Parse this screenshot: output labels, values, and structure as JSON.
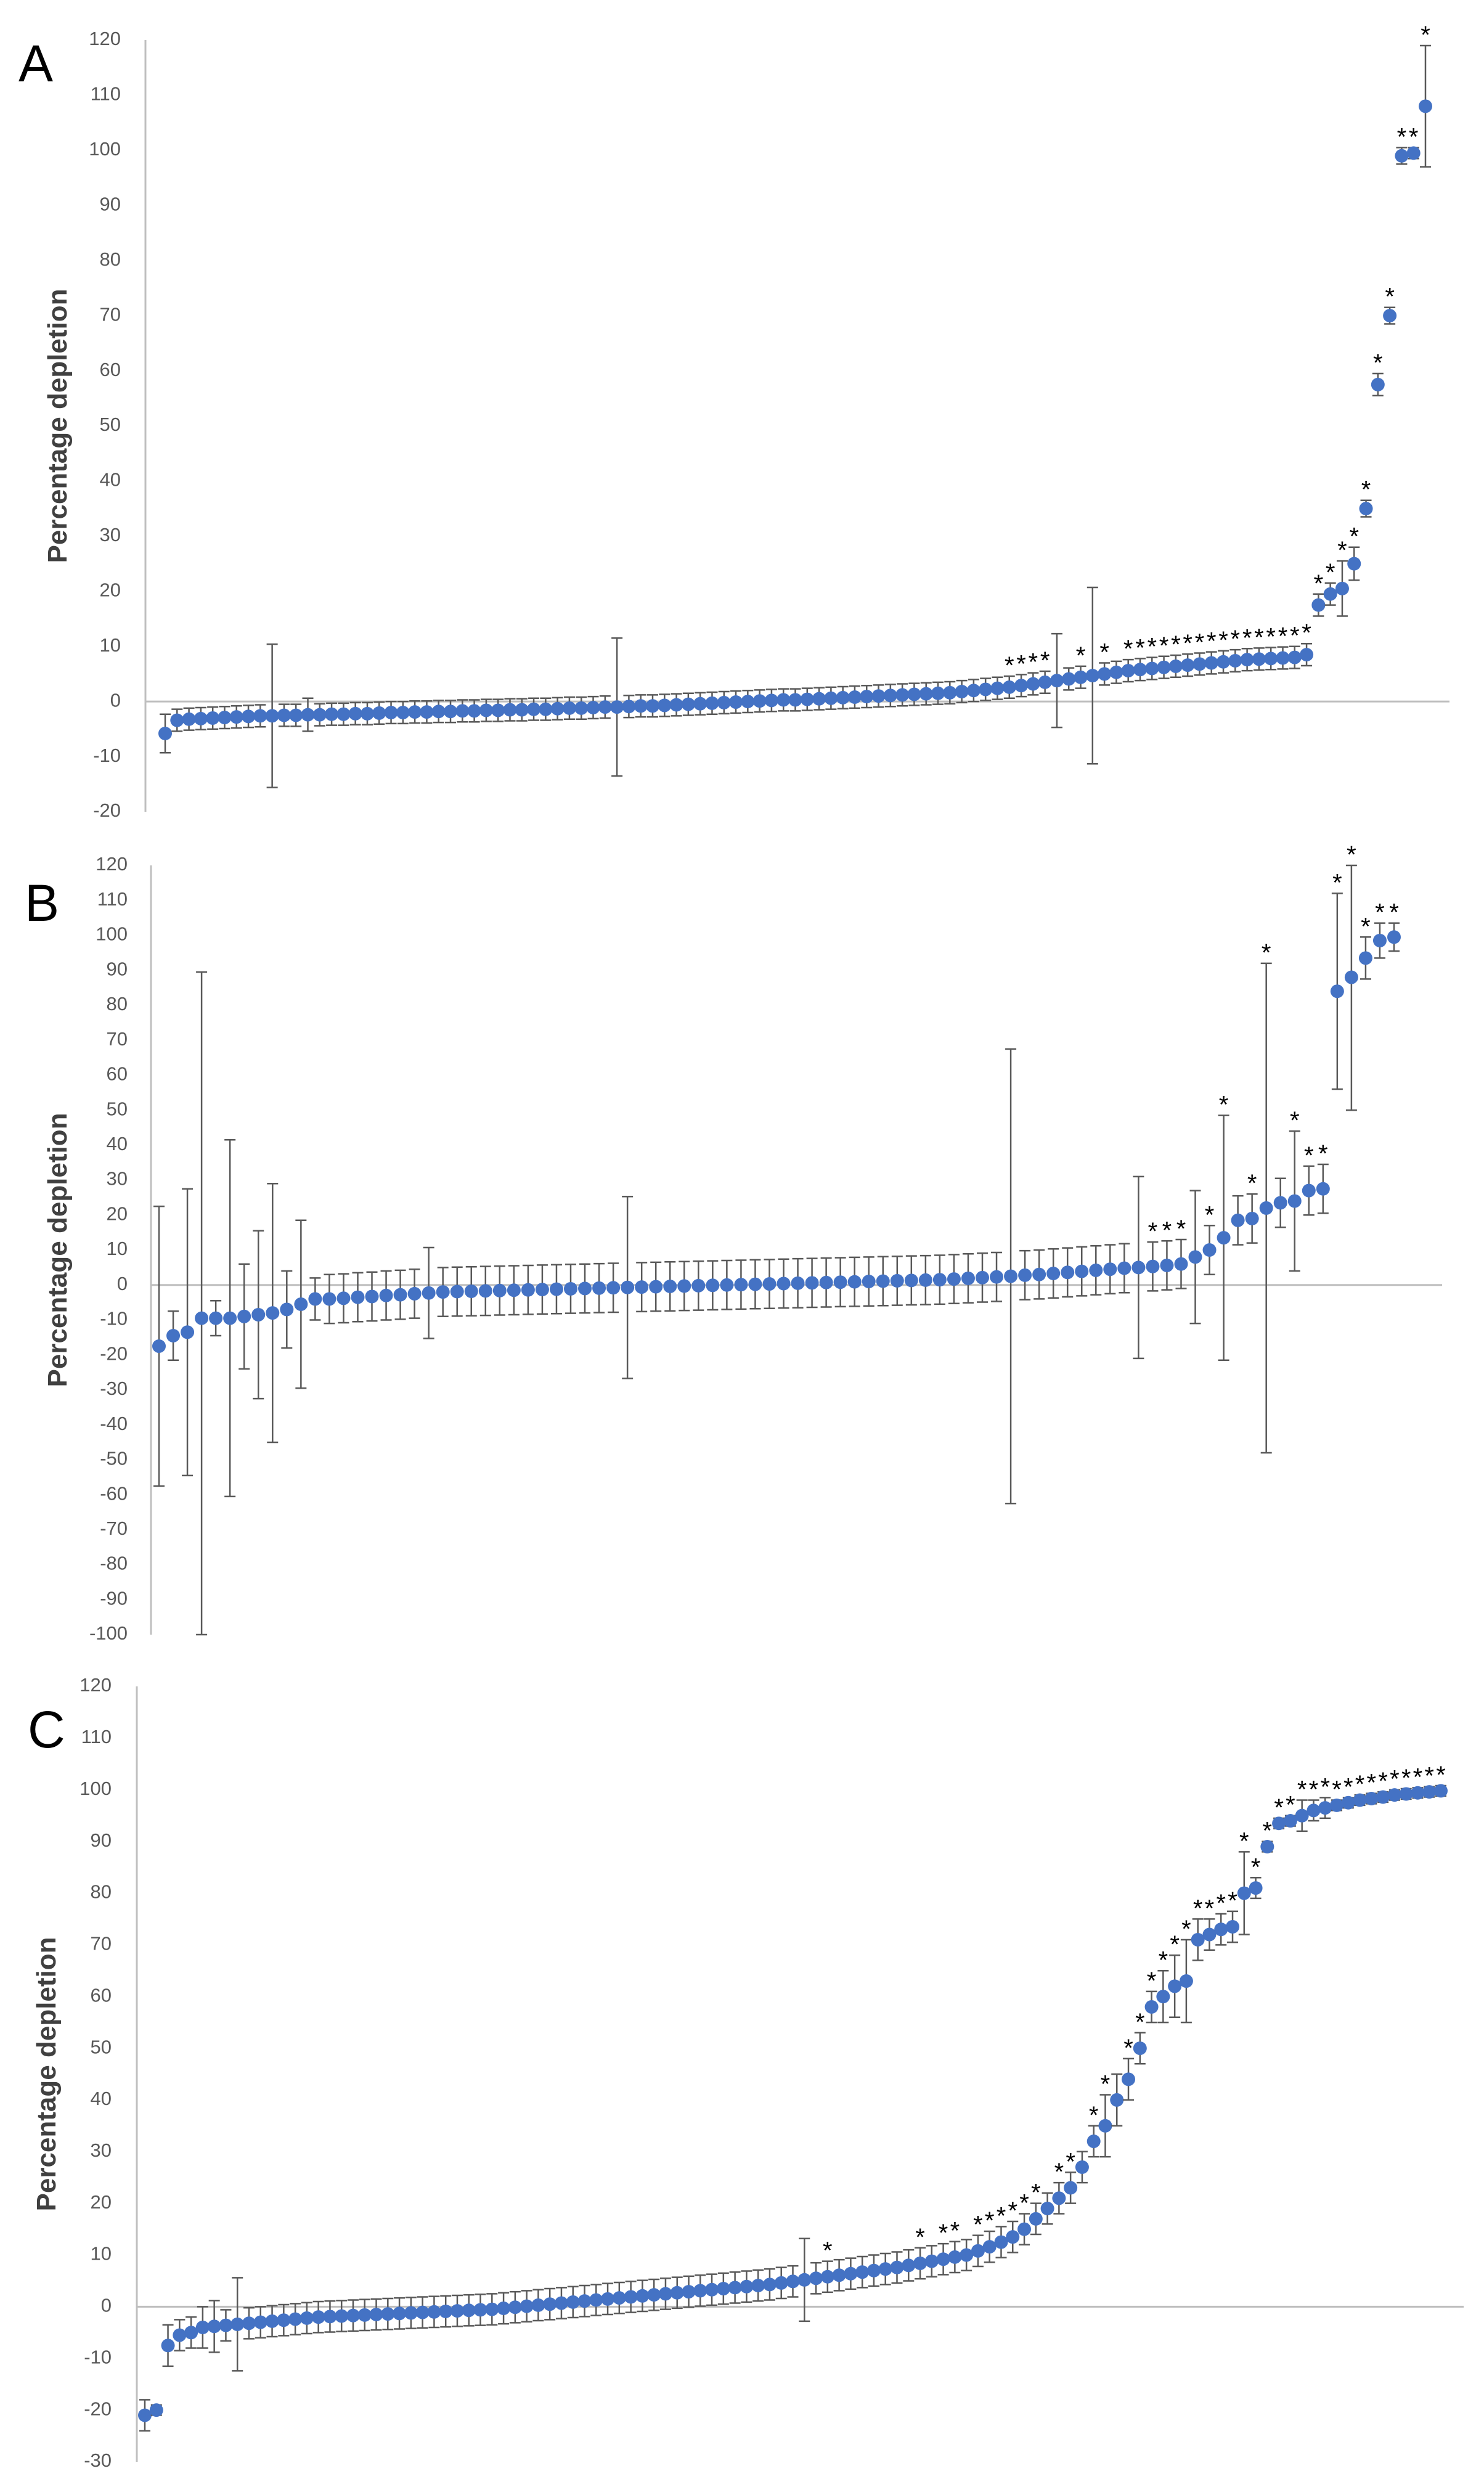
{
  "chart_data": [
    {
      "type": "scatter",
      "panel": "A",
      "title": "",
      "xlabel": "",
      "ylabel": "Percentage depletion",
      "ylim": [
        -20,
        120
      ],
      "y_ticks": [
        -20,
        -10,
        0,
        10,
        20,
        30,
        40,
        50,
        60,
        70,
        80,
        90,
        100,
        110,
        120
      ],
      "series": [
        {
          "name": "Percentage depletion",
          "color": "#4472C4",
          "values": [
            -5.8,
            -3.4,
            -3.2,
            -3.1,
            -3.0,
            -2.9,
            -2.8,
            -2.7,
            -2.6,
            -2.6,
            -2.5,
            -2.5,
            -2.4,
            -2.4,
            -2.3,
            -2.3,
            -2.2,
            -2.2,
            -2.1,
            -2.0,
            -2.0,
            -1.9,
            -1.9,
            -1.8,
            -1.8,
            -1.7,
            -1.7,
            -1.6,
            -1.6,
            -1.5,
            -1.5,
            -1.4,
            -1.4,
            -1.3,
            -1.2,
            -1.2,
            -1.1,
            -1.0,
            -1.0,
            -0.9,
            -0.8,
            -0.8,
            -0.7,
            -0.6,
            -0.5,
            -0.4,
            -0.3,
            -0.2,
            -0.1,
            0.0,
            0.1,
            0.2,
            0.3,
            0.3,
            0.4,
            0.5,
            0.6,
            0.7,
            0.8,
            0.9,
            1.0,
            1.1,
            1.2,
            1.3,
            1.4,
            1.5,
            1.6,
            1.8,
            2.0,
            2.2,
            2.4,
            2.6,
            2.9,
            3.2,
            3.5,
            3.8,
            4.1,
            4.4,
            4.7,
            5.0,
            5.3,
            5.6,
            5.8,
            6.0,
            6.2,
            6.4,
            6.6,
            6.8,
            7.0,
            7.2,
            7.4,
            7.6,
            7.7,
            7.8,
            7.9,
            8.0,
            8.5,
            17.5,
            19.5,
            20.5,
            25,
            35,
            57.5,
            70,
            99,
            99.5,
            108
          ],
          "errors": [
            3.5,
            2,
            2,
            2,
            2,
            2,
            2,
            2,
            2,
            13,
            2,
            2,
            3,
            2,
            2,
            2,
            2,
            2,
            2,
            2,
            2,
            2,
            2,
            2,
            2,
            2,
            2,
            2,
            2,
            2,
            2,
            2,
            2,
            2,
            2,
            2,
            2,
            2,
            12.5,
            2,
            2,
            2,
            2,
            2,
            2,
            2,
            2,
            2,
            2,
            2,
            2,
            2,
            2,
            2,
            2,
            2,
            2,
            2,
            2,
            2,
            2,
            2,
            2,
            2,
            2,
            2,
            2,
            2,
            2,
            2,
            2,
            2,
            2,
            2,
            2,
            8.5,
            2,
            2,
            16,
            2,
            2,
            2,
            2,
            2,
            2,
            2,
            2,
            2,
            2,
            2,
            2,
            2,
            2,
            2,
            2,
            2,
            2,
            2,
            2,
            5,
            3,
            1.5,
            2,
            1.5,
            1.5,
            1,
            11
          ],
          "significant": [
            false,
            false,
            false,
            false,
            false,
            false,
            false,
            false,
            false,
            false,
            false,
            false,
            false,
            false,
            false,
            false,
            false,
            false,
            false,
            false,
            false,
            false,
            false,
            false,
            false,
            false,
            false,
            false,
            false,
            false,
            false,
            false,
            false,
            false,
            false,
            false,
            false,
            false,
            false,
            false,
            false,
            false,
            false,
            false,
            false,
            false,
            false,
            false,
            false,
            false,
            false,
            false,
            false,
            false,
            false,
            false,
            false,
            false,
            false,
            false,
            false,
            false,
            false,
            false,
            false,
            false,
            false,
            false,
            false,
            false,
            false,
            true,
            true,
            true,
            true,
            false,
            false,
            true,
            false,
            true,
            false,
            true,
            true,
            true,
            true,
            true,
            true,
            true,
            true,
            true,
            true,
            true,
            true,
            true,
            true,
            true,
            true,
            true,
            true,
            true,
            true,
            true,
            true,
            true,
            true,
            true,
            true,
            true
          ]
        }
      ],
      "significance_marker": "*"
    },
    {
      "type": "scatter",
      "panel": "B",
      "title": "",
      "xlabel": "",
      "ylabel": "Percentage depletion",
      "ylim": [
        -100,
        120
      ],
      "y_ticks": [
        -100,
        -90,
        -80,
        -70,
        -60,
        -50,
        -40,
        -30,
        -20,
        -10,
        0,
        10,
        20,
        30,
        40,
        50,
        60,
        70,
        80,
        90,
        100,
        110,
        120
      ],
      "series": [
        {
          "name": "Percentage depletion",
          "color": "#4472C4",
          "values": [
            -17.5,
            -14.5,
            -13.5,
            -9.5,
            -9.5,
            -9.5,
            -9.0,
            -8.5,
            -8.0,
            -7.0,
            -5.5,
            -4.0,
            -4.0,
            -3.8,
            -3.5,
            -3.3,
            -3.0,
            -2.8,
            -2.5,
            -2.3,
            -2.0,
            -1.9,
            -1.8,
            -1.7,
            -1.6,
            -1.5,
            -1.4,
            -1.3,
            -1.2,
            -1.1,
            -1.0,
            -0.9,
            -0.8,
            -0.7,
            -0.6,
            -0.5,
            -0.4,
            -0.3,
            -0.2,
            -0.1,
            0.0,
            0.1,
            0.2,
            0.3,
            0.4,
            0.5,
            0.6,
            0.7,
            0.8,
            0.9,
            1.0,
            1.1,
            1.2,
            1.3,
            1.4,
            1.5,
            1.7,
            1.9,
            2.1,
            2.3,
            2.5,
            2.8,
            3.0,
            3.3,
            3.6,
            3.9,
            4.2,
            4.5,
            4.8,
            5.0,
            5.3,
            5.6,
            6.0,
            8.0,
            10.0,
            13.5,
            18.5,
            19.0,
            22.0,
            23.5,
            24.0,
            27.0,
            27.5,
            84,
            88,
            93.5,
            98.5,
            99.5
          ],
          "errors": [
            40,
            7,
            41,
            99,
            5,
            51,
            15,
            24,
            37,
            11,
            24,
            6,
            7,
            7,
            7,
            7,
            7,
            7,
            7,
            13,
            7,
            7,
            7,
            7,
            7,
            7,
            7,
            7,
            7,
            7,
            7,
            7,
            7,
            26,
            7,
            7,
            7,
            7,
            7,
            7,
            7,
            7,
            7,
            7,
            7,
            7,
            7,
            7,
            7,
            7,
            7,
            7,
            7,
            7,
            7,
            7,
            7,
            7,
            7,
            7,
            65,
            7,
            7,
            7,
            7,
            7,
            7,
            7,
            7,
            26,
            7,
            7,
            7,
            19,
            7,
            35,
            7,
            7,
            70,
            7,
            20,
            7,
            7,
            28,
            38,
            6,
            5,
            4
          ],
          "significant": [
            false,
            false,
            false,
            false,
            false,
            false,
            false,
            false,
            false,
            false,
            false,
            false,
            false,
            false,
            false,
            false,
            false,
            false,
            false,
            false,
            false,
            false,
            false,
            false,
            false,
            false,
            false,
            false,
            false,
            false,
            false,
            false,
            false,
            false,
            false,
            false,
            false,
            false,
            false,
            false,
            false,
            false,
            false,
            false,
            false,
            false,
            false,
            false,
            false,
            false,
            false,
            false,
            false,
            false,
            false,
            false,
            false,
            false,
            false,
            false,
            false,
            false,
            false,
            false,
            false,
            false,
            false,
            false,
            false,
            false,
            true,
            true,
            true,
            false,
            true,
            true,
            false,
            true,
            true,
            false,
            true,
            true,
            true,
            true,
            true,
            true,
            true,
            true
          ]
        }
      ],
      "significance_marker": "*"
    },
    {
      "type": "scatter",
      "panel": "C",
      "title": "",
      "xlabel": "",
      "ylabel": "Percentage depletion",
      "ylim": [
        -30,
        120
      ],
      "y_ticks": [
        -30,
        -20,
        -10,
        0,
        10,
        20,
        30,
        40,
        50,
        60,
        70,
        80,
        90,
        100,
        110,
        120
      ],
      "series": [
        {
          "name": "Percentage depletion",
          "color": "#4472C4",
          "values": [
            -21,
            -20,
            -7.5,
            -5.5,
            -5,
            -4,
            -3.8,
            -3.6,
            -3.4,
            -3.2,
            -3.0,
            -2.8,
            -2.6,
            -2.4,
            -2.2,
            -2.0,
            -1.9,
            -1.8,
            -1.7,
            -1.6,
            -1.5,
            -1.4,
            -1.3,
            -1.2,
            -1.1,
            -1.0,
            -0.9,
            -0.8,
            -0.7,
            -0.6,
            -0.5,
            -0.3,
            -0.1,
            0.1,
            0.3,
            0.5,
            0.7,
            0.9,
            1.1,
            1.3,
            1.5,
            1.7,
            1.9,
            2.1,
            2.3,
            2.5,
            2.7,
            2.9,
            3.1,
            3.3,
            3.5,
            3.7,
            3.9,
            4.1,
            4.3,
            4.6,
            4.9,
            5.2,
            5.5,
            5.8,
            6.1,
            6.4,
            6.7,
            7.0,
            7.3,
            7.6,
            8.0,
            8.4,
            8.8,
            9.2,
            9.6,
            10.0,
            10.8,
            11.6,
            12.5,
            13.5,
            15,
            17,
            19,
            21,
            23,
            27,
            32,
            35,
            40,
            44,
            50,
            58,
            60,
            62,
            63,
            71,
            72,
            73,
            73.5,
            80,
            81,
            89,
            93.5,
            94,
            95,
            96,
            96.5,
            97,
            97.5,
            98,
            98.3,
            98.6,
            99,
            99.2,
            99.4,
            99.6,
            99.8
          ],
          "errors": [
            3,
            1,
            4,
            3,
            3,
            4,
            5,
            3,
            9,
            3,
            3,
            3,
            3,
            3,
            3,
            3,
            3,
            3,
            3,
            3,
            3,
            3,
            3,
            3,
            3,
            3,
            3,
            3,
            3,
            3,
            3,
            3,
            3,
            3,
            3,
            3,
            3,
            3,
            3,
            3,
            3,
            3,
            3,
            3,
            3,
            3,
            3,
            3,
            3,
            3,
            3,
            3,
            3,
            3,
            3,
            3,
            3,
            8,
            3,
            3,
            3,
            3,
            3,
            3,
            3,
            3,
            3,
            3,
            3,
            3,
            3,
            3,
            3,
            3,
            3,
            3,
            3,
            3,
            3,
            3,
            3,
            3,
            3,
            6,
            5,
            4,
            3,
            3,
            5,
            6,
            8,
            4,
            3,
            3,
            3,
            8,
            2,
            1,
            1,
            1,
            3,
            2,
            2,
            1,
            1,
            1,
            1,
            1,
            1,
            1,
            1,
            1,
            1
          ],
          "significant": [
            false,
            false,
            false,
            false,
            false,
            false,
            false,
            false,
            false,
            false,
            false,
            false,
            false,
            false,
            false,
            false,
            false,
            false,
            false,
            false,
            false,
            false,
            false,
            false,
            false,
            false,
            false,
            false,
            false,
            false,
            false,
            false,
            false,
            false,
            false,
            false,
            false,
            false,
            false,
            false,
            false,
            false,
            false,
            false,
            false,
            false,
            false,
            false,
            false,
            false,
            false,
            false,
            false,
            false,
            false,
            false,
            false,
            false,
            false,
            true,
            false,
            false,
            false,
            false,
            false,
            false,
            false,
            true,
            false,
            true,
            true,
            false,
            true,
            true,
            true,
            true,
            true,
            true,
            false,
            true,
            true,
            false,
            true,
            true,
            false,
            true,
            true,
            true,
            true,
            true,
            true,
            true,
            true,
            true,
            true,
            true,
            true,
            true,
            true,
            true,
            true,
            true,
            true,
            true,
            true,
            true,
            true,
            true,
            true,
            true,
            true,
            true,
            true,
            true,
            true
          ]
        }
      ],
      "significance_marker": "*"
    }
  ]
}
